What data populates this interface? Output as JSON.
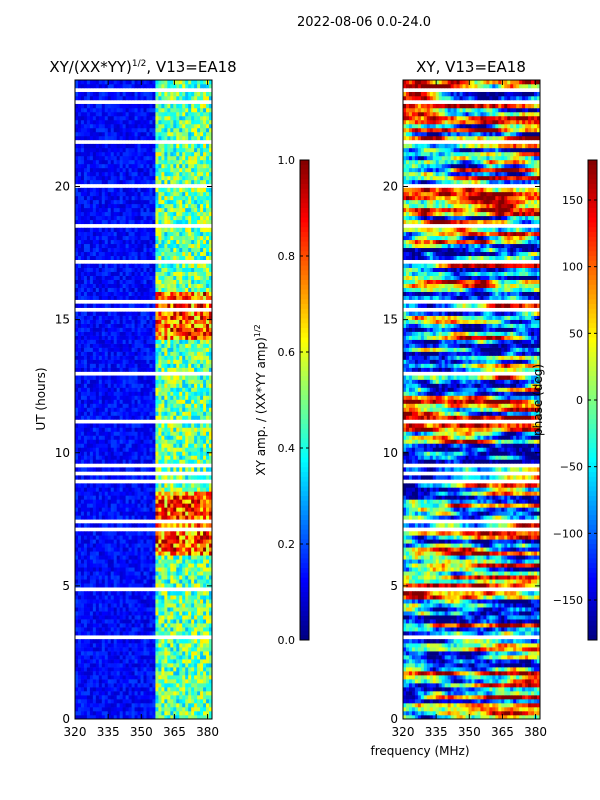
{
  "figure": {
    "suptitle": "2022-08-06 0.0-24.0",
    "shared_xlabel": "frequency (MHz)"
  },
  "chart_data": [
    {
      "type": "heatmap",
      "title_base": "XY/(XX*YY)",
      "title_sup": "1/2",
      "title_suffix": ", V13=EA18",
      "ylabel": "UT (hours)",
      "xlim": [
        320,
        382
      ],
      "ylim": [
        0,
        24
      ],
      "xticks": [
        320,
        335,
        350,
        365,
        380
      ],
      "yticks": [
        0,
        5,
        10,
        15,
        20
      ],
      "colorbar": {
        "label_base": "XY amp. / (XX*YY amp)",
        "label_sup": "1/2",
        "range": [
          0.0,
          1.0
        ],
        "ticks": [
          "0.0",
          "0.2",
          "0.4",
          "0.6",
          "0.8",
          "1.0"
        ],
        "tick_values": [
          0.0,
          0.2,
          0.4,
          0.6,
          0.8,
          1.0
        ]
      },
      "colormap": "jet"
    },
    {
      "type": "heatmap",
      "title": "XY, V13=EA18",
      "xlim": [
        320,
        382
      ],
      "ylim": [
        0,
        24
      ],
      "xticks": [
        320,
        335,
        350,
        365,
        380
      ],
      "yticks": [
        0,
        5,
        10,
        15,
        20
      ],
      "colorbar": {
        "label": "phase (deg)",
        "range": [
          -180,
          180
        ],
        "ticks": [
          "150",
          "100",
          "50",
          "0",
          "−50",
          "−100",
          "−150"
        ],
        "tick_values": [
          150,
          100,
          50,
          0,
          -50,
          -100,
          -150
        ]
      },
      "colormap": "jet"
    }
  ]
}
